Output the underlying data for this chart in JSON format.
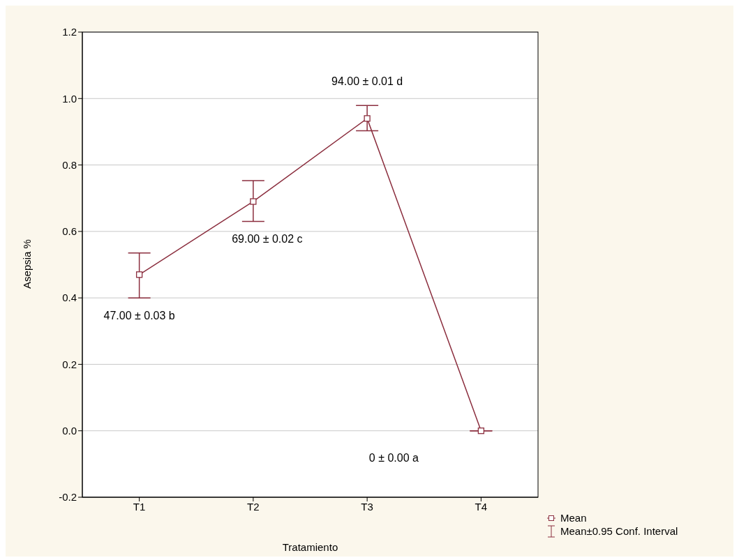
{
  "chart_data": {
    "type": "line",
    "xlabel": "Tratamiento",
    "ylabel": "Asepsia %",
    "categories": [
      "T1",
      "T2",
      "T3",
      "T4"
    ],
    "series": [
      {
        "name": "Mean",
        "color": "#8b2e3e",
        "values": [
          0.47,
          0.69,
          0.94,
          0
        ],
        "errors": [
          [
            0.4,
            0.535
          ],
          [
            0.63,
            0.753
          ],
          [
            0.903,
            0.979
          ],
          [
            0,
            0
          ]
        ]
      }
    ],
    "ylim": [
      -0.2,
      1.2
    ],
    "yticks": [
      -0.2,
      {
        "value": 0,
        "label": "0.0"
      },
      0.2,
      0.4,
      0.6,
      0.8,
      {
        "value": 1,
        "label": "1.0"
      },
      1.2
    ],
    "grid": "y",
    "marker": "square",
    "line_style": "solid",
    "legend": "bottom right",
    "annotations": [
      "47.00 ± 0.03 b",
      "69.00 ± 0.02 c",
      "94.00 ± 0.01 d",
      "0 ± 0.00 a",
      "Mean±0.95 Conf. Interval"
    ]
  }
}
